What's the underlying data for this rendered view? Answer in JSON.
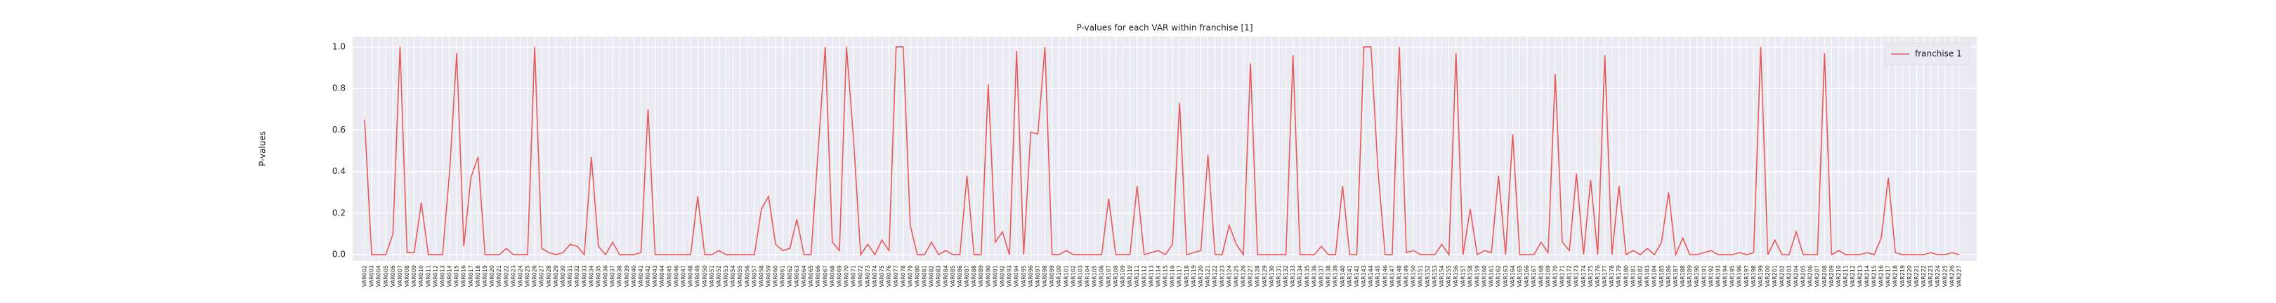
{
  "chart_data": {
    "type": "line",
    "title": "P-values for each VAR within franchise [1]",
    "ylabel": "P-values",
    "categories": [
      "VAR002",
      "VAR003",
      "VAR004",
      "VAR005",
      "VAR006",
      "VAR007",
      "VAR008",
      "VAR009",
      "VAR010",
      "VAR011",
      "VAR012",
      "VAR013",
      "VAR014",
      "VAR015",
      "VAR016",
      "VAR017",
      "VAR018",
      "VAR019",
      "VAR020",
      "VAR021",
      "VAR022",
      "VAR023",
      "VAR024",
      "VAR025",
      "VAR026",
      "VAR027",
      "VAR028",
      "VAR029",
      "VAR030",
      "VAR031",
      "VAR032",
      "VAR033",
      "VAR034",
      "VAR035",
      "VAR036",
      "VAR037",
      "VAR038",
      "VAR039",
      "VAR040",
      "VAR041",
      "VAR042",
      "VAR043",
      "VAR044",
      "VAR045",
      "VAR046",
      "VAR047",
      "VAR048",
      "VAR049",
      "VAR050",
      "VAR051",
      "VAR052",
      "VAR053",
      "VAR054",
      "VAR055",
      "VAR056",
      "VAR057",
      "VAR058",
      "VAR059",
      "VAR060",
      "VAR061",
      "VAR062",
      "VAR063",
      "VAR064",
      "VAR065",
      "VAR066",
      "VAR067",
      "VAR068",
      "VAR069",
      "VAR070",
      "VAR071",
      "VAR072",
      "VAR073",
      "VAR074",
      "VAR075",
      "VAR076",
      "VAR077",
      "VAR078",
      "VAR079",
      "VAR080",
      "VAR081",
      "VAR082",
      "VAR083",
      "VAR084",
      "VAR085",
      "VAR086",
      "VAR087",
      "VAR088",
      "VAR089",
      "VAR090",
      "VAR091",
      "VAR092",
      "VAR093",
      "VAR094",
      "VAR095",
      "VAR096",
      "VAR097",
      "VAR098",
      "VAR099",
      "VAR100",
      "VAR101",
      "VAR102",
      "VAR103",
      "VAR104",
      "VAR105",
      "VAR106",
      "VAR107",
      "VAR108",
      "VAR109",
      "VAR110",
      "VAR111",
      "VAR112",
      "VAR113",
      "VAR114",
      "VAR115",
      "VAR116",
      "VAR117",
      "VAR118",
      "VAR119",
      "VAR120",
      "VAR121",
      "VAR122",
      "VAR123",
      "VAR124",
      "VAR125",
      "VAR126",
      "VAR127",
      "VAR128",
      "VAR129",
      "VAR130",
      "VAR131",
      "VAR132",
      "VAR133",
      "VAR134",
      "VAR135",
      "VAR136",
      "VAR137",
      "VAR138",
      "VAR139",
      "VAR140",
      "VAR141",
      "VAR142",
      "VAR143",
      "VAR144",
      "VAR145",
      "VAR146",
      "VAR147",
      "VAR148",
      "VAR149",
      "VAR150",
      "VAR151",
      "VAR152",
      "VAR153",
      "VAR154",
      "VAR155",
      "VAR156",
      "VAR157",
      "VAR158",
      "VAR159",
      "VAR160",
      "VAR161",
      "VAR162",
      "VAR163",
      "VAR164",
      "VAR165",
      "VAR166",
      "VAR167",
      "VAR168",
      "VAR169",
      "VAR170",
      "VAR171",
      "VAR172",
      "VAR173",
      "VAR174",
      "VAR175",
      "VAR176",
      "VAR177",
      "VAR178",
      "VAR179",
      "VAR180",
      "VAR181",
      "VAR182",
      "VAR183",
      "VAR184",
      "VAR185",
      "VAR186",
      "VAR187",
      "VAR188",
      "VAR189",
      "VAR190",
      "VAR191",
      "VAR192",
      "VAR193",
      "VAR194",
      "VAR195",
      "VAR196",
      "VAR197",
      "VAR198",
      "VAR199",
      "VAR200",
      "VAR201",
      "VAR202",
      "VAR203",
      "VAR204",
      "VAR205",
      "VAR206",
      "VAR207",
      "VAR208",
      "VAR209",
      "VAR210",
      "VAR211",
      "VAR212",
      "VAR213",
      "VAR214",
      "VAR215",
      "VAR216",
      "VAR217",
      "VAR218",
      "VAR219",
      "VAR220",
      "VAR221",
      "VAR222",
      "VAR223",
      "VAR224",
      "VAR225",
      "VAR226",
      "VAR227"
    ],
    "series": [
      {
        "name": "franchise 1",
        "color": "#e8595b",
        "values": [
          0.65,
          0,
          0,
          0,
          0.1,
          1.0,
          0.01,
          0.01,
          0.25,
          0,
          0,
          0,
          0.4,
          0.97,
          0.04,
          0.37,
          0.47,
          0,
          0,
          0,
          0.03,
          0,
          0,
          0,
          1.0,
          0.03,
          0.01,
          0,
          0.01,
          0.05,
          0.04,
          0,
          0.47,
          0.04,
          0,
          0.06,
          0,
          0,
          0,
          0.01,
          0.7,
          0,
          0,
          0,
          0,
          0,
          0,
          0.28,
          0,
          0,
          0.02,
          0,
          0,
          0,
          0,
          0,
          0.22,
          0.28,
          0.05,
          0.02,
          0.03,
          0.17,
          0,
          0,
          0.5,
          1.0,
          0.06,
          0.02,
          1.0,
          0.55,
          0,
          0.05,
          0,
          0.07,
          0.02,
          1.0,
          1.0,
          0.14,
          0,
          0,
          0.06,
          0,
          0.02,
          0,
          0,
          0.38,
          0,
          0,
          0.82,
          0.06,
          0.11,
          0,
          0.98,
          0,
          0.59,
          0.58,
          1.0,
          0,
          0,
          0.02,
          0,
          0,
          0,
          0,
          0,
          0.27,
          0,
          0,
          0,
          0.33,
          0,
          0.01,
          0.02,
          0,
          0.05,
          0.73,
          0,
          0.01,
          0.02,
          0.48,
          0,
          0,
          0.14,
          0.05,
          0,
          0.92,
          0,
          0,
          0,
          0,
          0,
          0.96,
          0,
          0,
          0,
          0.04,
          0,
          0,
          0.33,
          0,
          0,
          1.0,
          1.0,
          0.4,
          0,
          0,
          1.0,
          0.01,
          0.02,
          0,
          0,
          0,
          0.05,
          0,
          0.97,
          0,
          0.22,
          0,
          0.02,
          0.01,
          0.38,
          0,
          0.58,
          0,
          0,
          0,
          0.06,
          0.01,
          0.87,
          0.06,
          0.02,
          0.39,
          0,
          0.36,
          0,
          0.96,
          0,
          0.33,
          0,
          0.02,
          0,
          0.03,
          0,
          0.06,
          0.3,
          0,
          0.08,
          0,
          0,
          0.01,
          0.02,
          0,
          0,
          0,
          0.01,
          0,
          0.01,
          1.0,
          0,
          0.07,
          0,
          0,
          0.11,
          0,
          0,
          0,
          0.97,
          0,
          0.02,
          0,
          0,
          0,
          0.01,
          0,
          0.08,
          0.37,
          0.01,
          0,
          0,
          0,
          0,
          0.01,
          0,
          0,
          0.01,
          0
        ]
      }
    ],
    "ylim": [
      -0.03,
      1.05
    ],
    "yticks": [
      {
        "value": 0,
        "label": "0.0"
      },
      0.2,
      0.4,
      0.6,
      0.8,
      {
        "value": 1,
        "label": "1.0"
      }
    ],
    "grid": true,
    "legend": "upper right"
  }
}
